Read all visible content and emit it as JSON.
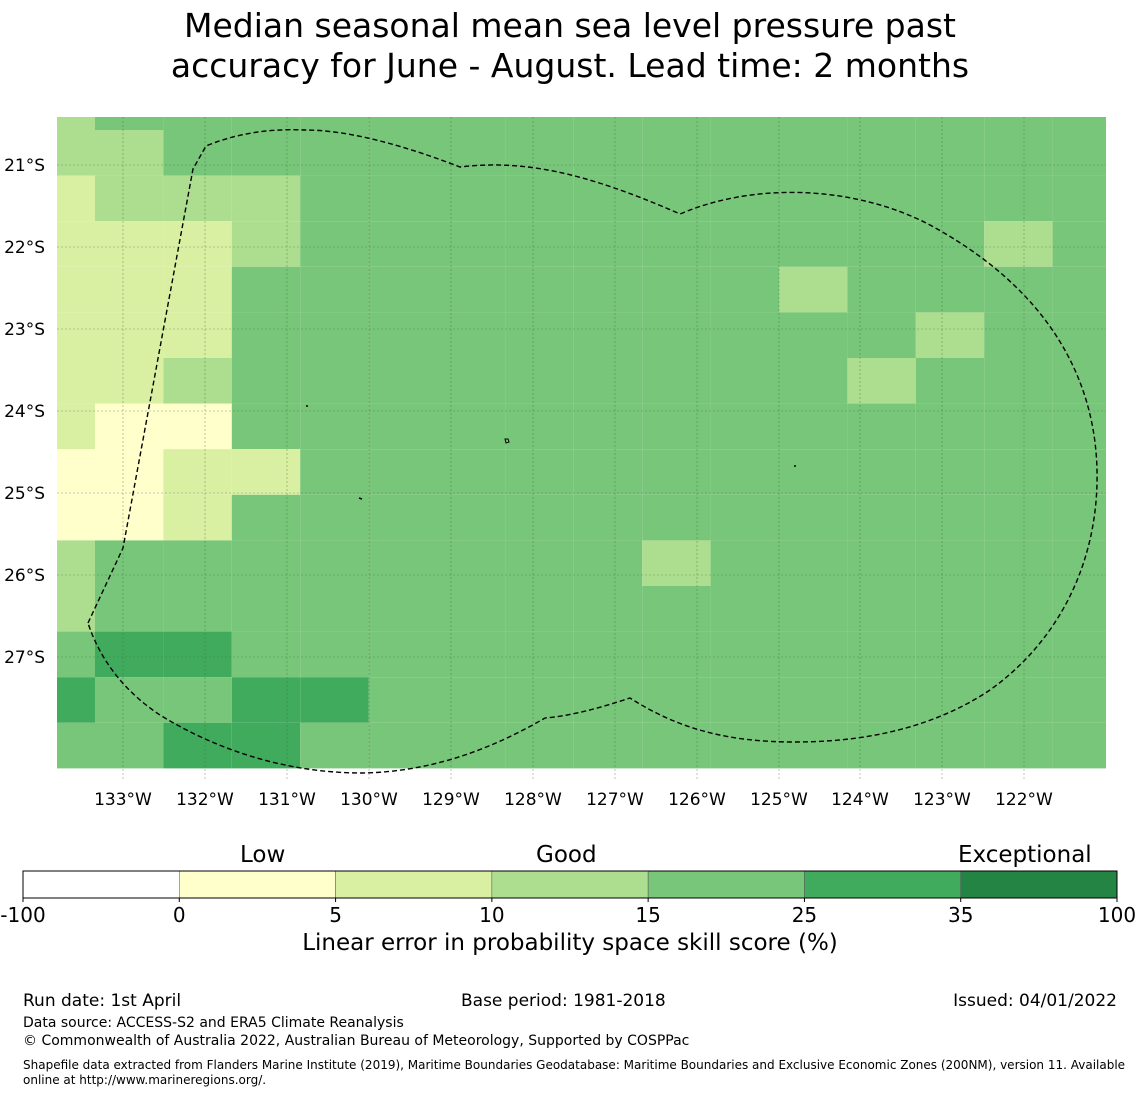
{
  "title": {
    "line1": "Median seasonal mean sea level pressure past",
    "line2": "accuracy for June - August. Lead time: 2 months"
  },
  "map": {
    "lat_labels": [
      "21°S",
      "22°S",
      "23°S",
      "24°S",
      "25°S",
      "26°S",
      "27°S"
    ],
    "lon_labels": [
      "133°W",
      "132°W",
      "131°W",
      "130°W",
      "129°W",
      "128°W",
      "127°W",
      "126°W",
      "125°W",
      "124°W",
      "123°W",
      "122°W"
    ],
    "grid_colors": {
      "0-5": "#ffffcc",
      "5-10": "#d9f0a3",
      "10-15": "#addd8e",
      "15-25": "#78c679",
      "25-35": "#41ab5d",
      "35-100": "#238443"
    },
    "cell_classes": [
      [
        "10-15",
        "15-25",
        "15-25",
        "15-25",
        "15-25",
        "15-25",
        "15-25",
        "15-25",
        "15-25",
        "15-25",
        "15-25",
        "15-25",
        "15-25",
        "15-25",
        "15-25",
        "15-25"
      ],
      [
        "10-15",
        "10-15",
        "15-25",
        "15-25",
        "15-25",
        "15-25",
        "15-25",
        "15-25",
        "15-25",
        "15-25",
        "15-25",
        "15-25",
        "15-25",
        "15-25",
        "15-25",
        "15-25"
      ],
      [
        "5-10",
        "10-15",
        "10-15",
        "10-15",
        "15-25",
        "15-25",
        "15-25",
        "15-25",
        "15-25",
        "15-25",
        "15-25",
        "15-25",
        "15-25",
        "15-25",
        "15-25",
        "15-25"
      ],
      [
        "5-10",
        "5-10",
        "5-10",
        "10-15",
        "15-25",
        "15-25",
        "15-25",
        "15-25",
        "15-25",
        "15-25",
        "15-25",
        "15-25",
        "15-25",
        "15-25",
        "10-15",
        "15-25"
      ],
      [
        "5-10",
        "5-10",
        "5-10",
        "15-25",
        "15-25",
        "15-25",
        "15-25",
        "15-25",
        "15-25",
        "15-25",
        "15-25",
        "10-15",
        "15-25",
        "15-25",
        "15-25",
        "15-25"
      ],
      [
        "5-10",
        "5-10",
        "5-10",
        "15-25",
        "15-25",
        "15-25",
        "15-25",
        "15-25",
        "15-25",
        "15-25",
        "15-25",
        "15-25",
        "15-25",
        "10-15",
        "15-25",
        "15-25"
      ],
      [
        "5-10",
        "5-10",
        "10-15",
        "15-25",
        "15-25",
        "15-25",
        "15-25",
        "15-25",
        "15-25",
        "15-25",
        "15-25",
        "15-25",
        "10-15",
        "15-25",
        "15-25",
        "15-25"
      ],
      [
        "5-10",
        "0-5",
        "0-5",
        "15-25",
        "15-25",
        "15-25",
        "15-25",
        "15-25",
        "15-25",
        "15-25",
        "15-25",
        "15-25",
        "15-25",
        "15-25",
        "15-25",
        "15-25"
      ],
      [
        "0-5",
        "0-5",
        "5-10",
        "5-10",
        "15-25",
        "15-25",
        "15-25",
        "15-25",
        "15-25",
        "15-25",
        "15-25",
        "15-25",
        "15-25",
        "15-25",
        "15-25",
        "15-25"
      ],
      [
        "0-5",
        "0-5",
        "5-10",
        "15-25",
        "15-25",
        "15-25",
        "15-25",
        "15-25",
        "15-25",
        "15-25",
        "15-25",
        "15-25",
        "15-25",
        "15-25",
        "15-25",
        "15-25"
      ],
      [
        "10-15",
        "15-25",
        "15-25",
        "15-25",
        "15-25",
        "15-25",
        "15-25",
        "15-25",
        "15-25",
        "10-15",
        "15-25",
        "15-25",
        "15-25",
        "15-25",
        "15-25",
        "15-25"
      ],
      [
        "10-15",
        "15-25",
        "15-25",
        "15-25",
        "15-25",
        "15-25",
        "15-25",
        "15-25",
        "15-25",
        "15-25",
        "15-25",
        "15-25",
        "15-25",
        "15-25",
        "15-25",
        "15-25"
      ],
      [
        "15-25",
        "25-35",
        "25-35",
        "15-25",
        "15-25",
        "15-25",
        "15-25",
        "15-25",
        "15-25",
        "15-25",
        "15-25",
        "15-25",
        "15-25",
        "15-25",
        "15-25",
        "15-25"
      ],
      [
        "25-35",
        "15-25",
        "15-25",
        "25-35",
        "25-35",
        "15-25",
        "15-25",
        "15-25",
        "15-25",
        "15-25",
        "15-25",
        "15-25",
        "15-25",
        "15-25",
        "15-25",
        "15-25"
      ],
      [
        "15-25",
        "15-25",
        "25-35",
        "25-35",
        "15-25",
        "15-25",
        "15-25",
        "15-25",
        "15-25",
        "15-25",
        "15-25",
        "15-25",
        "15-25",
        "15-25",
        "15-25",
        "15-25"
      ]
    ]
  },
  "colorbar": {
    "categories": [
      "Low",
      "Good",
      "Exceptional"
    ],
    "ticks": [
      "-100",
      "0",
      "5",
      "10",
      "15",
      "25",
      "35",
      "100"
    ],
    "colors": [
      "#ffffff",
      "#ffffcc",
      "#d9f0a3",
      "#addd8e",
      "#78c679",
      "#41ab5d",
      "#238443"
    ],
    "label": "Linear error in probability space skill score (%)"
  },
  "footer": {
    "run_date": "Run date: 1st April",
    "base_period": "Base period: 1981-2018",
    "issued": "Issued: 04/01/2022",
    "data_source": "Data source: ACCESS-S2 and ERA5 Climate Reanalysis",
    "copyright": "© Commonwealth of Australia 2022, Australian Bureau of Meteorology, Supported by COSPPac",
    "shapefile": "Shapefile data extracted from Flanders Marine Institute (2019), Maritime Boundaries Geodatabase: Maritime Boundaries and Exclusive Economic Zones (200NM), version 11. Available online at http://www.marineregions.org/."
  }
}
